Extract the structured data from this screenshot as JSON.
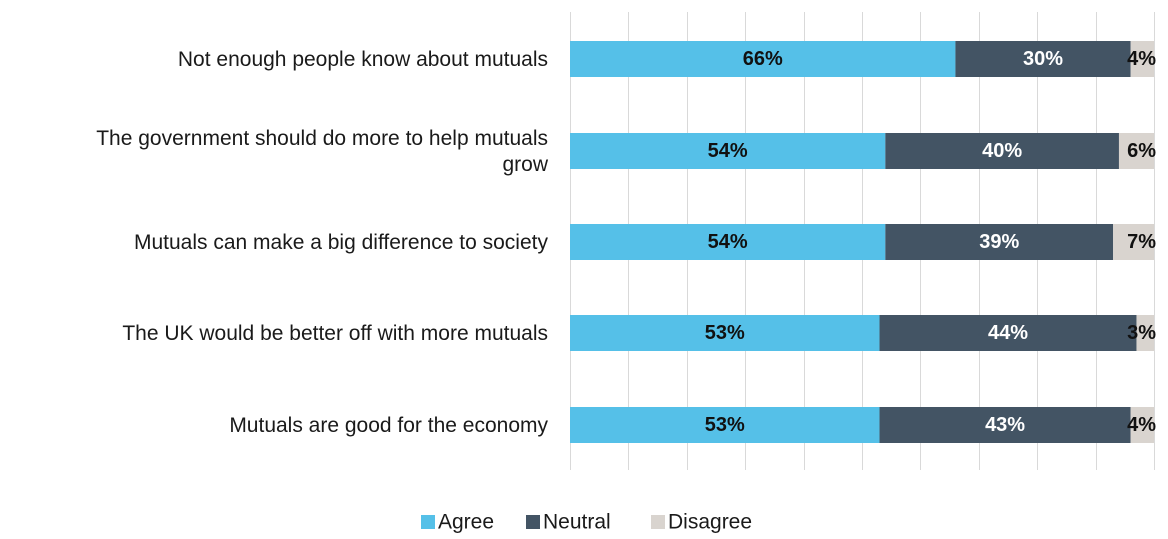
{
  "chart_data": {
    "type": "bar",
    "orientation": "horizontal",
    "stacked": true,
    "percent_stacked": true,
    "title": "",
    "xlabel": "",
    "ylabel": "",
    "xlim": [
      0,
      100
    ],
    "grid": true,
    "legend_position": "bottom",
    "categories": [
      [
        "Not enough people know about mutuals"
      ],
      [
        "The government should do more to help mutuals",
        "grow"
      ],
      [
        "Mutuals can make a big difference to society"
      ],
      [
        "The UK would be better off with more mutuals"
      ],
      [
        "Mutuals are good for the economy"
      ]
    ],
    "series": [
      {
        "name": "Agree",
        "color": "#55c0e8",
        "label_color": "#111111",
        "values": [
          66,
          54,
          54,
          53,
          53
        ],
        "labels": [
          "66%",
          "54%",
          "54%",
          "53%",
          "53%"
        ]
      },
      {
        "name": "Neutral",
        "color": "#435464",
        "label_color": "#ffffff",
        "values": [
          30,
          40,
          39,
          44,
          43
        ],
        "labels": [
          "30%",
          "40%",
          "39%",
          "44%",
          "43%"
        ]
      },
      {
        "name": "Disagree",
        "color": "#d9d4cf",
        "label_color": "#111111",
        "values": [
          4,
          6,
          7,
          3,
          4
        ],
        "labels": [
          "4%",
          "6%",
          "7%",
          "3%",
          "4%"
        ]
      }
    ]
  }
}
